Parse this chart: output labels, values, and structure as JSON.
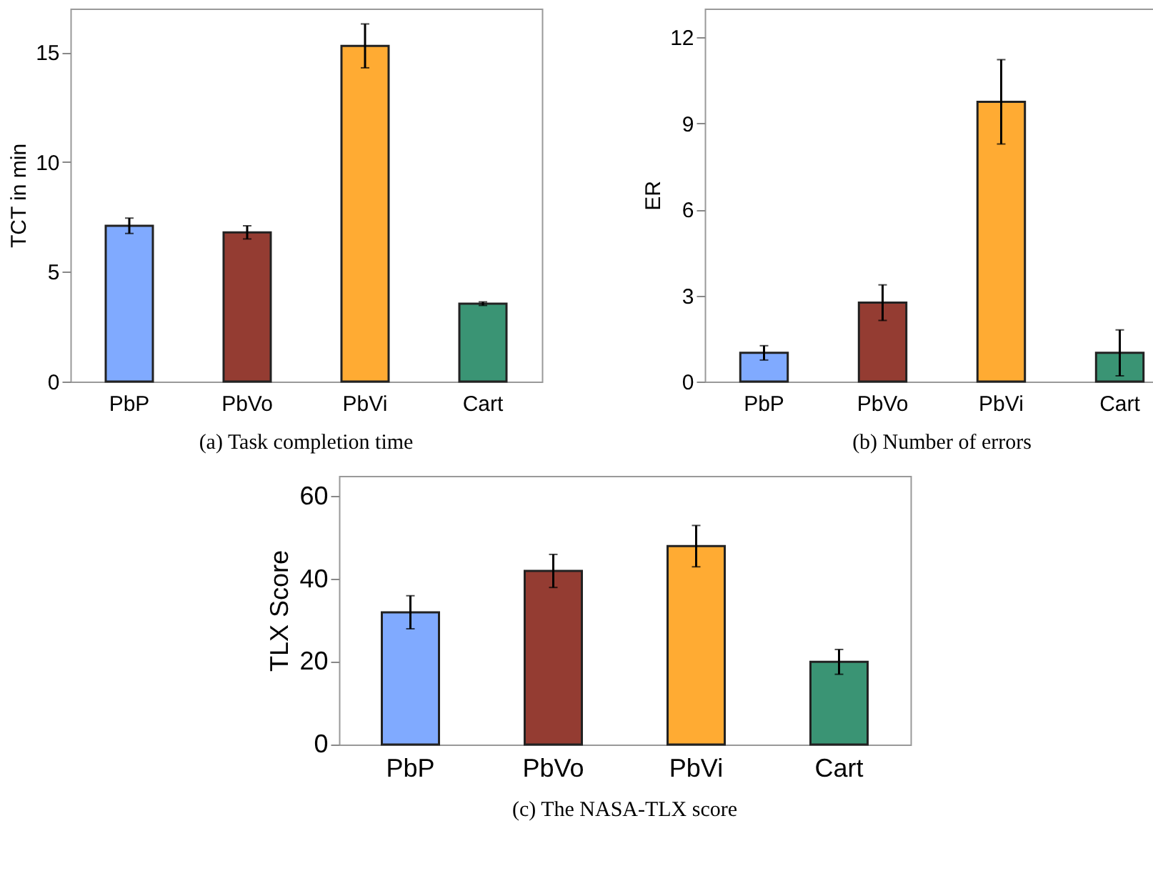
{
  "chart_data": [
    {
      "type": "bar",
      "title": "(a)  Task completion time",
      "ylabel": "TCT in min",
      "categories": [
        "PbP",
        "PbVo",
        "PbVi",
        "Cart"
      ],
      "values": [
        7.1,
        6.8,
        15.3,
        3.55
      ],
      "errors": [
        0.35,
        0.3,
        1,
        0.08
      ],
      "colors": [
        "#80aaff",
        "#943c32",
        "#ffab33",
        "#3a9474"
      ],
      "ylim": [
        0,
        17
      ],
      "yticks": [
        0,
        5,
        10,
        15
      ]
    },
    {
      "type": "bar",
      "title": "(b)  Number of errors",
      "ylabel": "ER",
      "categories": [
        "PbP",
        "PbVo",
        "PbVi",
        "Cart"
      ],
      "values": [
        1,
        2.75,
        9.75,
        1
      ],
      "errors": [
        0.25,
        0.62,
        1.47,
        0.8
      ],
      "colors": [
        "#80aaff",
        "#943c32",
        "#ffab33",
        "#3a9474"
      ],
      "ylim": [
        0,
        13
      ],
      "yticks": [
        0,
        3,
        6,
        9,
        12
      ]
    },
    {
      "type": "bar",
      "title": "(c)  The NASA-TLX score",
      "ylabel": "TLX Score",
      "categories": [
        "PbP",
        "PbVo",
        "PbVi",
        "Cart"
      ],
      "values": [
        32,
        42,
        48,
        20
      ],
      "errors": [
        4,
        4,
        5,
        3
      ],
      "colors": [
        "#80aaff",
        "#943c32",
        "#ffab33",
        "#3a9474"
      ],
      "ylim": [
        0,
        65
      ],
      "yticks": [
        0,
        20,
        40,
        60
      ]
    }
  ]
}
